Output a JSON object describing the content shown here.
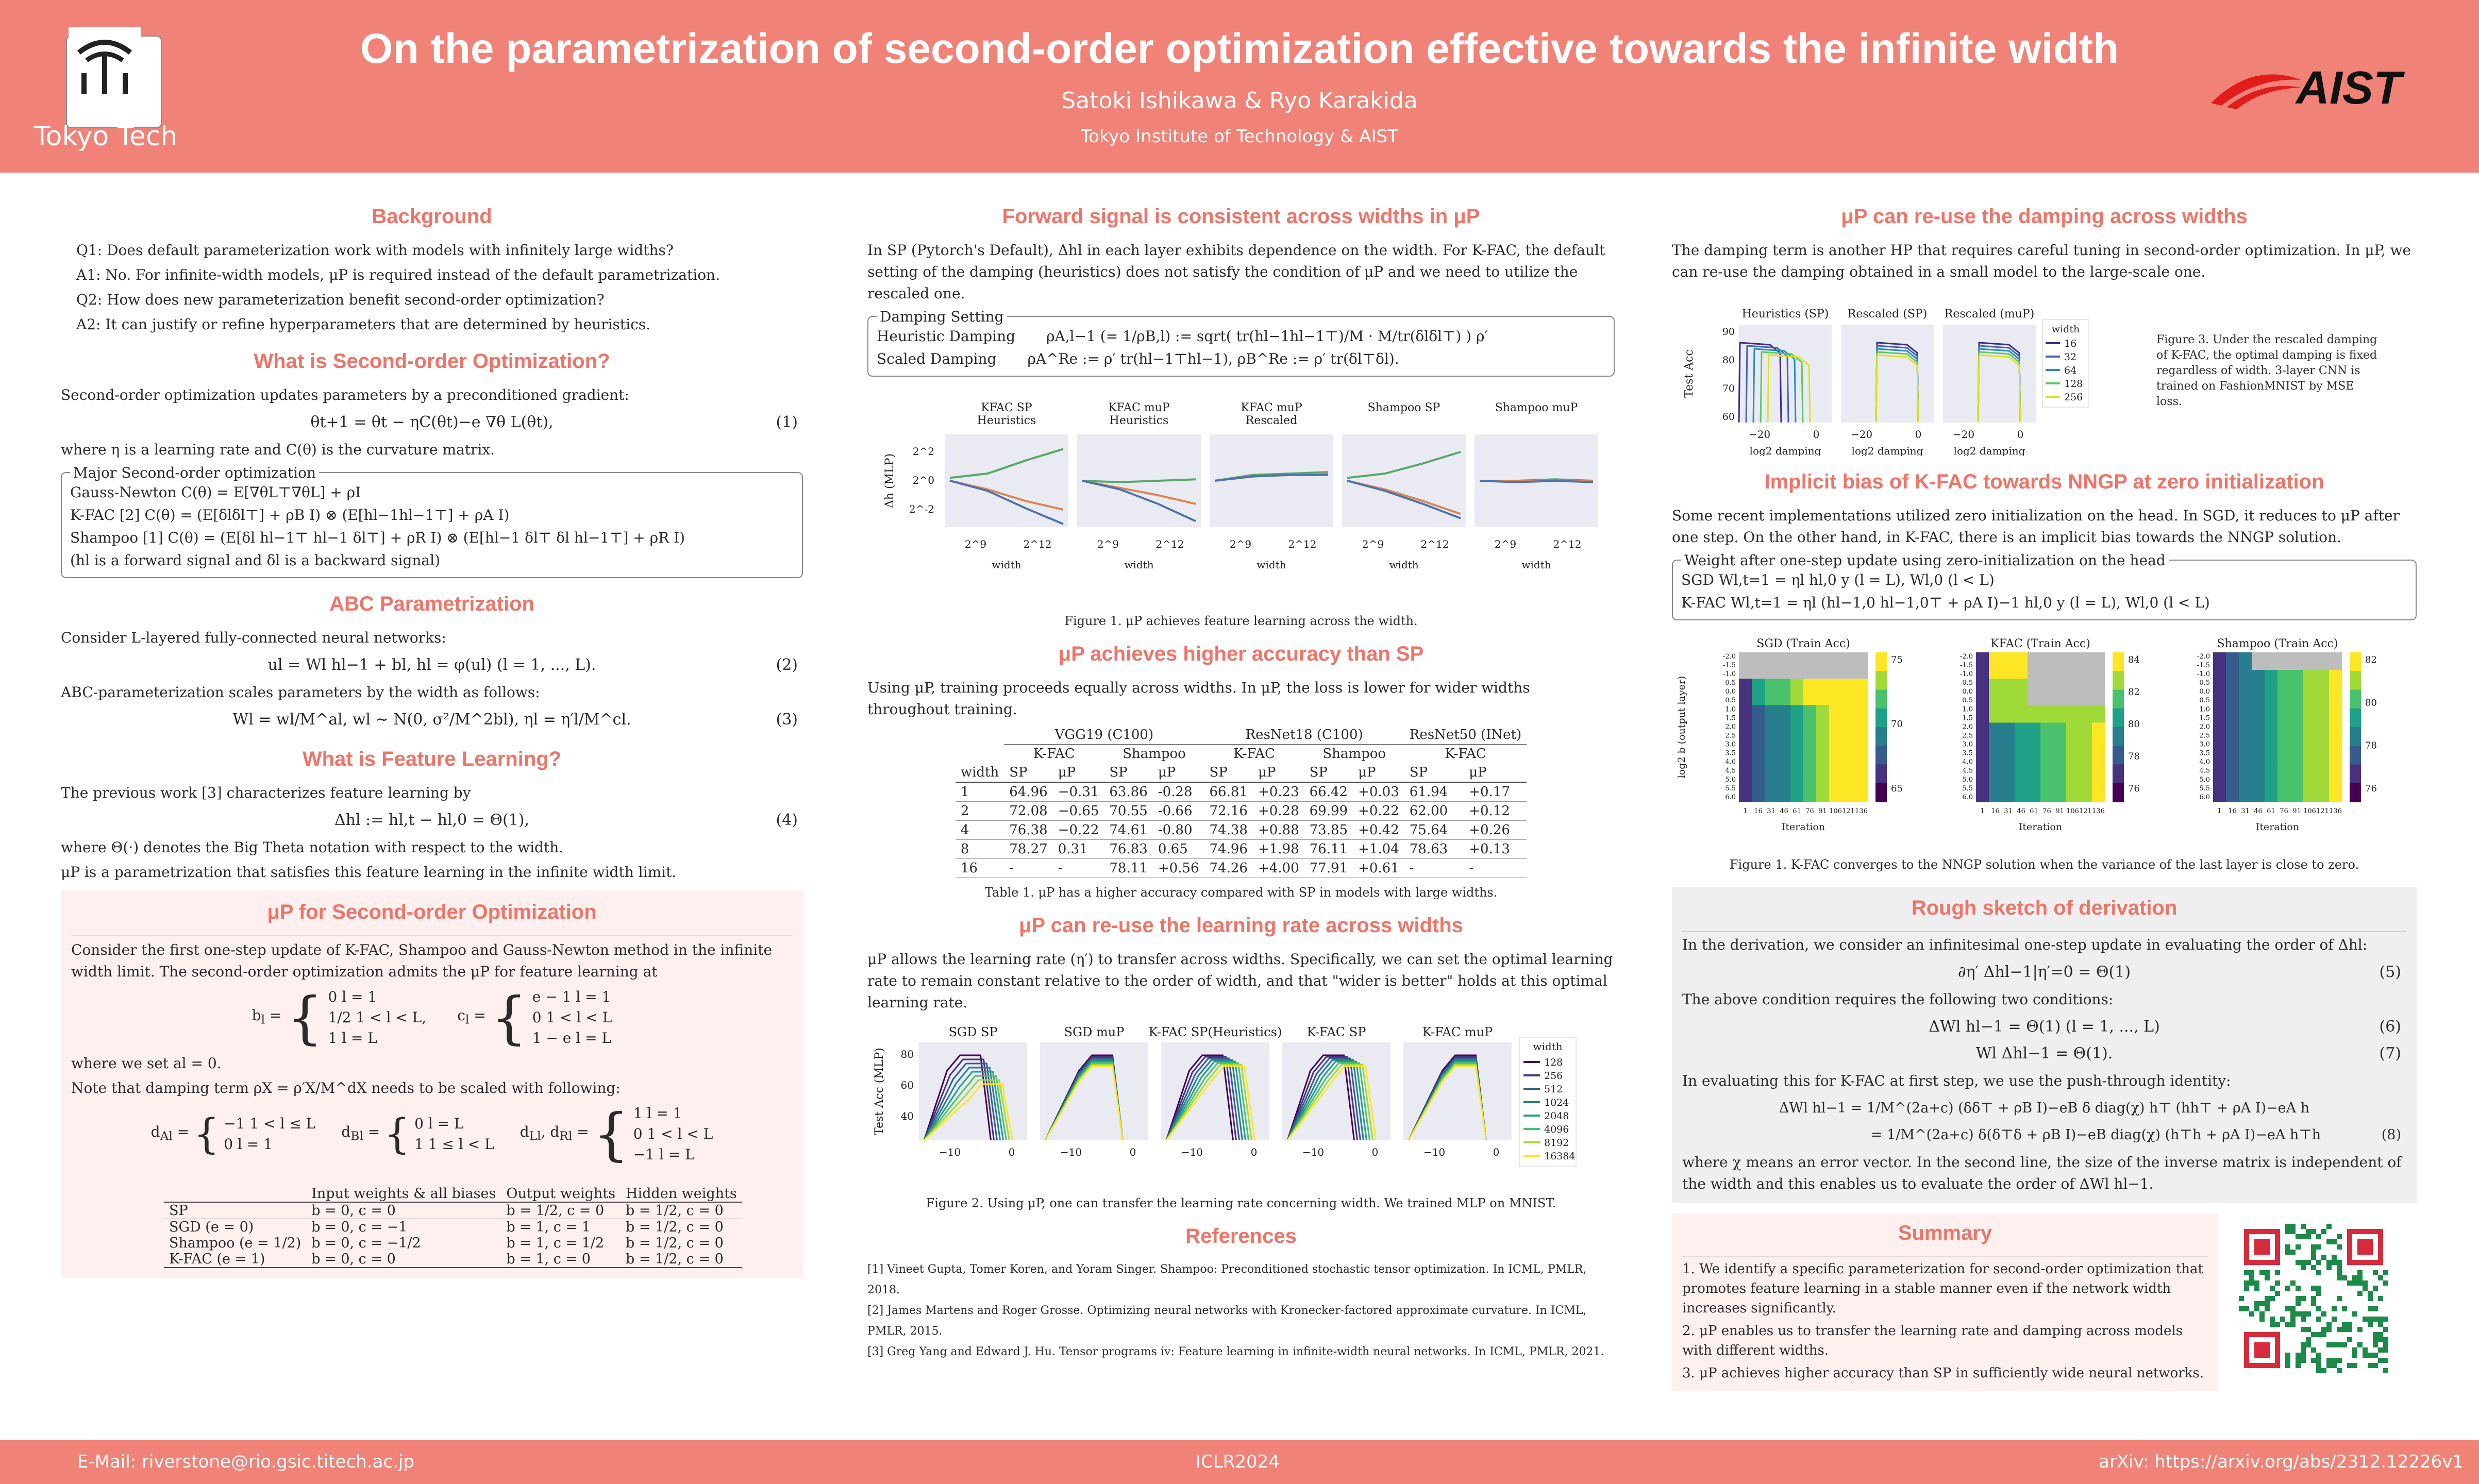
{
  "header": {
    "title": "On the parametrization of second-order optimization effective towards the infinite width",
    "authors": "Satoki Ishikawa & Ryo Karakida",
    "affiliation": "Tokyo Institute of Technology & AIST",
    "logo_left": "Tokyo Tech",
    "logo_right": "AIST"
  },
  "footer": {
    "email": "E-Mail: riverstone@rio.gsic.titech.ac.jp",
    "venue": "ICLR2024",
    "arxiv": "arXiv: https://arxiv.org/abs/2312.12226v1"
  },
  "col1": {
    "background_title": "Background",
    "q1": "Q1: Does default parameterization work with models with infinitely large widths?",
    "a1": "A1: No. For infinite-width models, μP is required instead of the default parametrization.",
    "q2": "Q2: How does new parameterization benefit second-order optimization?",
    "a2": "A2: It can justify or refine hyperparameters that are determined by heuristics.",
    "so_title": "What is Second-order Optimization?",
    "so_text": "Second-order optimization updates parameters by a preconditioned gradient:",
    "so_eq": "θt+1 = θt − ηC(θt)−e ∇θ L(θt),",
    "so_eq_num": "(1)",
    "so_where": "where η is a learning rate and C(θ) is the curvature matrix.",
    "major_label": "Major Second-order optimization",
    "gn": "Gauss-Newton   C(θ) = E[∇θL⊤∇θL] + ρI",
    "kfac": "K-FAC [2]   C(θ) = (E[δlδl⊤] + ρB I) ⊗ (E[hl−1hl−1⊤] + ρA I)",
    "shampoo": "Shampoo [1]   C(θ) = (E[δl hl−1⊤ hl−1 δl⊤] + ρR I) ⊗ (E[hl−1 δl⊤ δl hl−1⊤] + ρR I)",
    "note": "(hl is a forward signal and δl is a backward signal)",
    "abc_title": "ABC Parametrization",
    "abc_text": "Consider L-layered fully-connected neural networks:",
    "abc_eq1": "ul = Wl hl−1 + bl,   hl = φ(ul)   (l = 1, ..., L).",
    "abc_eq1_num": "(2)",
    "abc_text2": "ABC-parameterization scales parameters by the width as follows:",
    "abc_eq2": "Wl = wl/M^al,   wl ∼ N(0, σ²/M^2bl),   ηl = η′l/M^cl.",
    "abc_eq2_num": "(3)",
    "fl_title": "What is Feature Learning?",
    "fl_text": "The previous work [3] characterizes feature learning by",
    "fl_eq": "Δhl := hl,t − hl,0 = Θ(1),",
    "fl_eq_num": "(4)",
    "fl_where": "where Θ(·) denotes the Big Theta notation with respect to the width.",
    "fl_mup": "μP is a parametrization that satisfies this feature learning in the infinite width limit.",
    "mup_title": "μP for Second-order Optimization",
    "mup_text": "Consider the first one-step update of K-FAC, Shampoo and Gauss-Newton method in the infinite width limit. The second-order optimization admits the μP for feature learning at",
    "bl_cases": [
      "0   l = 1",
      "1/2   1 < l < L,",
      "1   l = L"
    ],
    "cl_cases": [
      "e − 1   l = 1",
      "0   1 < l < L",
      "1 − e   l = L"
    ],
    "set_al": "where we set al = 0.",
    "damp_note": "Note that damping term ρX = ρ′X/M^dX needs to be scaled with following:",
    "dA_cases": [
      "−1   1 < l ≤ L",
      "0   l = 1"
    ],
    "dB_cases": [
      "0   l = L",
      "1   1 ≤ l < L"
    ],
    "dLR_cases": [
      "1   l = 1",
      "0   1 < l < L",
      "−1   l = L"
    ],
    "table_headers": [
      "",
      "Input weights & all biases",
      "Output weights",
      "Hidden weights"
    ],
    "table_rows": [
      [
        "SP",
        "b = 0, c = 0",
        "b = 1/2, c = 0",
        "b = 1/2, c = 0"
      ],
      [
        "SGD (e = 0)",
        "b = 0, c = −1",
        "b = 1, c = 1",
        "b = 1/2, c = 0"
      ],
      [
        "Shampoo (e = 1/2)",
        "b = 0, c = −1/2",
        "b = 1, c = 1/2",
        "b = 1/2, c = 0"
      ],
      [
        "K-FAC (e = 1)",
        "b = 0, c = 0",
        "b = 1, c = 0",
        "b = 1/2, c = 0"
      ]
    ]
  },
  "col2": {
    "fwd_title": "Forward signal is consistent across widths in μP",
    "fwd_text": "In SP (Pytorch's Default), Δhl in each layer exhibits dependence on the width. For K-FAC, the default setting of the damping (heuristics) does not satisfy the condition of μP and we need to utilize the rescaled one.",
    "damp_label": "Damping Setting",
    "heur": "Heuristic Damping",
    "heur_eq": "ρA,l−1 (= 1/ρB,l) := sqrt( tr(hl−1hl−1⊤)/M · M/tr(δlδl⊤) ) ρ′",
    "scaled": "Scaled Damping",
    "scaled_eq": "ρA^Re := ρ′ tr(hl−1⊤hl−1),   ρB^Re := ρ′ tr(δl⊤δl).",
    "fig1_cap": "Figure 1. μP achieves feature learning across the width.",
    "acc_title": "μP achieves higher accuracy than SP",
    "acc_text": "Using μP, training proceeds equally across widths. In μP, the loss is lower for wider widths throughout training.",
    "acc_cap": "Table 1. μP has a higher accuracy compared with SP in models with large widths.",
    "lr_title": "μP can re-use the learning rate across widths",
    "lr_text": "μP allows the learning rate (η′) to transfer across widths. Specifically, we can set the optimal learning rate to remain constant relative to the order of width, and that \"wider is better\" holds at this optimal learning rate.",
    "fig2_cap": "Figure 2. Using μP, one can transfer the learning rate concerning width. We trained MLP on MNIST.",
    "ref_title": "References",
    "refs": [
      "[1]  Vineet Gupta, Tomer Koren, and Yoram Singer. Shampoo: Preconditioned stochastic tensor optimization. In ICML, PMLR, 2018.",
      "[2]  James Martens and Roger Grosse. Optimizing neural networks with Kronecker-factored approximate curvature. In ICML, PMLR, 2015.",
      "[3]  Greg Yang and Edward J. Hu. Tensor programs iv: Feature learning in infinite-width neural networks. In ICML, PMLR, 2021."
    ]
  },
  "col3": {
    "damp_title": "μP can re-use the damping across widths",
    "damp_text": "The damping term is another HP that requires careful tuning in second-order optimization. In μP, we can re-use the damping obtained in a small model to the large-scale one.",
    "fig3_cap": "Figure 3. Under the rescaled damping of K-FAC, the optimal damping is fixed regardless of width. 3-layer CNN is trained on FashionMNIST by MSE loss.",
    "ib_title": "Implicit bias of K-FAC towards NNGP at zero initialization",
    "ib_text": "Some recent implementations utilized zero initialization on the head. In SGD, it reduces to μP after one step. On the other hand, in K-FAC, there is an implicit bias towards the NNGP solution.",
    "ib_label": "Weight after one-step update using zero-initialization on the head",
    "ib_sgd": "SGD     Wl,t=1 = ηl hl,0 y  (l = L),   Wl,0  (l < L)",
    "ib_kfac": "K-FAC     Wl,t=1 = ηl (hl−1,0 hl−1,0⊤ + ρA I)−1 hl,0 y  (l = L),   Wl,0  (l < L)",
    "heat_cap": "Figure 1. K-FAC converges to the NNGP solution when the variance of the last layer is close to zero.",
    "der_title": "Rough sketch of derivation",
    "der_text1": "In the derivation, we consider an infinitesimal one-step update in evaluating the order of Δhl:",
    "der_eq5": "∂η′ Δhl−1|η′=0 = Θ(1)",
    "der_eq5_num": "(5)",
    "der_text2": "The above condition requires the following two conditions:",
    "der_eq6": "ΔWl hl−1 = Θ(1)   (l = 1, ..., L)",
    "der_eq6_num": "(6)",
    "der_eq7": "Wl Δhl−1 = Θ(1).",
    "der_eq7_num": "(7)",
    "der_text3": "In evaluating this for K-FAC at first step, we use the push-through identity:",
    "der_eq8a": "ΔWl hl−1 = 1/M^(2a+c) (δδ⊤ + ρB I)−eB δ diag(χ) h⊤ (hh⊤ + ρA I)−eA h",
    "der_eq8b": "= 1/M^(2a+c) δ(δ⊤δ + ρB I)−eB diag(χ) (h⊤h + ρA I)−eA h⊤h",
    "der_eq8_num": "(8)",
    "der_text4": "where χ means an error vector. In the second line, the size of the inverse matrix is independent of the width and this enables us to evaluate the order of ΔWl hl−1.",
    "sum_title": "Summary",
    "sum_items": [
      "1.  We identify a specific parameterization for second-order optimization that promotes feature learning in a stable manner even if the network width increases significantly.",
      "2.  μP enables us to transfer the learning rate and damping across models with different widths.",
      "3.  μP achieves higher accuracy than SP in sufficiently wide neural networks."
    ]
  },
  "chart_data": [
    {
      "type": "line",
      "title": "Δhl (MLP) vs width",
      "panels": [
        "KFAC SP Heuristics",
        "KFAC muP Heuristics",
        "KFAC muP Rescaled",
        "Shampoo SP",
        "Shampoo muP"
      ],
      "xlabel": "width",
      "ylabel": "Δh (MLP)",
      "x_ticks": [
        "2^9",
        "2^12"
      ],
      "y_ticks": [
        "2^2",
        "2^0",
        "2^-2"
      ],
      "series_colors": [
        "#55a868",
        "#dd8452",
        "#4c72b0"
      ],
      "series": [
        {
          "panel": "KFAC SP Heuristics",
          "green": [
            0.2,
            0.5,
            1.4,
            2.2
          ],
          "orange": [
            0.0,
            -0.6,
            -1.4,
            -2.0
          ],
          "blue": [
            0.0,
            -0.7,
            -1.9,
            -3.0
          ]
        },
        {
          "panel": "KFAC muP Heuristics",
          "green": [
            0.0,
            -0.1,
            0.0,
            0.1
          ],
          "orange": [
            0.0,
            -0.5,
            -1.0,
            -1.6
          ],
          "blue": [
            0.0,
            -0.6,
            -1.6,
            -2.8
          ]
        },
        {
          "panel": "KFAC muP Rescaled",
          "green": [
            0.0,
            0.4,
            0.5,
            0.6
          ],
          "orange": [
            0.0,
            0.3,
            0.4,
            0.5
          ],
          "blue": [
            0.0,
            0.3,
            0.4,
            0.4
          ]
        },
        {
          "panel": "Shampoo SP",
          "green": [
            0.2,
            0.5,
            1.2,
            2.0
          ],
          "orange": [
            0.0,
            -0.6,
            -1.4,
            -2.3
          ],
          "blue": [
            0.0,
            -0.7,
            -1.6,
            -2.6
          ]
        },
        {
          "panel": "Shampoo muP",
          "green": [
            0.0,
            0.0,
            0.1,
            0.0
          ],
          "orange": [
            0.0,
            0.0,
            0.0,
            0.0
          ],
          "blue": [
            0.0,
            -0.1,
            0.0,
            -0.1
          ]
        }
      ]
    },
    {
      "type": "table",
      "title": "Table 1",
      "headers1": [
        "",
        "VGG19 (C100)",
        "ResNet18 (C100)",
        "ResNet50 (INet)"
      ],
      "headers2": [
        "",
        "K-FAC",
        "Shampoo",
        "K-FAC",
        "Shampoo",
        "K-FAC"
      ],
      "headers3": [
        "width",
        "SP",
        "μP",
        "SP",
        "μP",
        "SP",
        "μP",
        "SP",
        "μP",
        "SP",
        "μP"
      ],
      "rows": [
        [
          "1",
          "64.96",
          "−0.31",
          "63.86",
          "-0.28",
          "66.81",
          "+0.23",
          "66.42",
          "+0.03",
          "61.94",
          "+0.17"
        ],
        [
          "2",
          "72.08",
          "−0.65",
          "70.55",
          "-0.66",
          "72.16",
          "+0.28",
          "69.99",
          "+0.22",
          "62.00",
          "+0.12"
        ],
        [
          "4",
          "76.38",
          "−0.22",
          "74.61",
          "-0.80",
          "74.38",
          "+0.88",
          "73.85",
          "+0.42",
          "75.64",
          "+0.26"
        ],
        [
          "8",
          "78.27",
          "0.31",
          "76.83",
          "0.65",
          "74.96",
          "+1.98",
          "76.11",
          "+1.04",
          "78.63",
          "+0.13"
        ],
        [
          "16",
          "-",
          "-",
          "78.11",
          "+0.56",
          "74.26",
          "+4.00",
          "77.91",
          "+0.61",
          "-",
          "-"
        ]
      ]
    },
    {
      "type": "line",
      "title": "Test Acc (MLP) vs log2 learning rate",
      "panels": [
        "SGD SP",
        "SGD muP",
        "K-FAC SP(Heuristics)",
        "K-FAC SP",
        "K-FAC muP"
      ],
      "ylabel": "Test Acc (MLP)",
      "y_ticks": [
        "80",
        "60",
        "40"
      ],
      "x_ticks": [
        "−10",
        "0"
      ],
      "legend_title": "width",
      "legend": [
        "128",
        "256",
        "512",
        "1024",
        "2048",
        "4096",
        "8192",
        "16384"
      ],
      "legend_colors": [
        "#440154",
        "#46327e",
        "#365c8d",
        "#277f8e",
        "#1fa187",
        "#4ac16d",
        "#a0da39",
        "#fde725"
      ]
    },
    {
      "type": "line",
      "title": "Test Acc vs log2 damping",
      "panels": [
        "Heuristics (SP)",
        "Rescaled (SP)",
        "Rescaled (muP)"
      ],
      "ylabel": "Test Acc",
      "xlabel": "log2 damping",
      "y_ticks": [
        "90",
        "80",
        "70",
        "60"
      ],
      "x_ticks": [
        "−20",
        "0"
      ],
      "legend_title": "width",
      "legend": [
        "16",
        "32",
        "64",
        "128",
        "256"
      ],
      "legend_colors": [
        "#3b2a84",
        "#4163b5",
        "#2b8cbe",
        "#5cc863",
        "#dde318"
      ]
    },
    {
      "type": "heatmap",
      "title": "Train Acc heatmaps",
      "panels": [
        "SGD (Train Acc)",
        "KFAC (Train Acc)",
        "Shampoo (Train Acc)"
      ],
      "xlabel": "Iteration",
      "ylabel": "log2 b (output layer)",
      "y_ticks": [
        "-2.0",
        "-1.5",
        "-1.0",
        "-0.5",
        "0.0",
        "0.5",
        "1.0",
        "1.5",
        "2.0",
        "2.5",
        "3.0",
        "3.5",
        "4.0",
        "4.5",
        "5.0",
        "5.5",
        "6.0"
      ],
      "x_ticks": [
        "1",
        "16",
        "31",
        "46",
        "61",
        "76",
        "91",
        "106",
        "121",
        "136"
      ],
      "colorbar": [
        [
          "75",
          "70",
          "65"
        ],
        [
          "84",
          "82",
          "80",
          "78",
          "76"
        ],
        [
          "82",
          "80",
          "78",
          "76"
        ]
      ]
    }
  ]
}
